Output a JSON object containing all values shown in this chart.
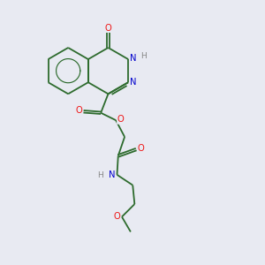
{
  "background_color": "#e8eaf2",
  "bond_color": "#2d6b2d",
  "atom_colors": {
    "O": "#ee1111",
    "N": "#0000cc",
    "H": "#888888"
  },
  "lw": 1.3,
  "fs": 7.2,
  "figsize": [
    3.0,
    3.0
  ],
  "dpi": 100
}
